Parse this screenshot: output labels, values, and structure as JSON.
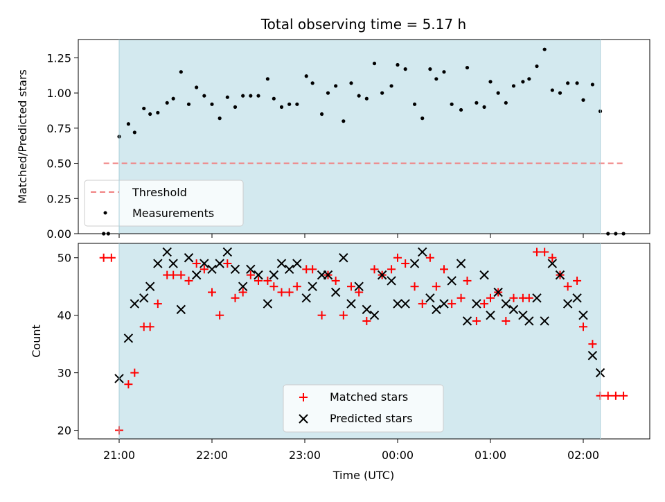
{
  "chart_data": {
    "title": "Total observing time = 5.17 h",
    "xlabel": "Time (UTC)",
    "x_ticks": [
      "21:00",
      "22:00",
      "23:00",
      "00:00",
      "01:00",
      "02:00"
    ],
    "observing_window": {
      "start": "21:00",
      "end": "02:11",
      "color": "#d3e9ef"
    },
    "panels": [
      {
        "type": "scatter",
        "ylabel": "Matched/Predicted stars",
        "ylim": [
          0,
          1.38
        ],
        "y_ticks": [
          "0.00",
          "0.25",
          "0.50",
          "0.75",
          "1.00",
          "1.25"
        ],
        "legend_placement": "lower-left",
        "threshold": {
          "name": "Threshold",
          "value": 0.5,
          "x_start": "20:50",
          "x_end": "02:26",
          "color": "#f08080"
        },
        "series": [
          {
            "name": "Measurements",
            "color": "#000000",
            "points": [
              [
                "20:50",
                0.0
              ],
              [
                "20:53",
                0.0
              ],
              [
                "21:00",
                0.69
              ],
              [
                "21:06",
                0.78
              ],
              [
                "21:10",
                0.72
              ],
              [
                "21:16",
                0.89
              ],
              [
                "21:20",
                0.85
              ],
              [
                "21:25",
                0.86
              ],
              [
                "21:31",
                0.93
              ],
              [
                "21:35",
                0.96
              ],
              [
                "21:40",
                1.15
              ],
              [
                "21:45",
                0.92
              ],
              [
                "21:50",
                1.04
              ],
              [
                "21:55",
                0.98
              ],
              [
                "22:00",
                0.92
              ],
              [
                "22:05",
                0.82
              ],
              [
                "22:10",
                0.97
              ],
              [
                "22:15",
                0.9
              ],
              [
                "22:20",
                0.98
              ],
              [
                "22:25",
                0.98
              ],
              [
                "22:30",
                0.98
              ],
              [
                "22:36",
                1.1
              ],
              [
                "22:40",
                0.96
              ],
              [
                "22:45",
                0.9
              ],
              [
                "22:50",
                0.92
              ],
              [
                "22:55",
                0.92
              ],
              [
                "23:01",
                1.12
              ],
              [
                "23:05",
                1.07
              ],
              [
                "23:11",
                0.85
              ],
              [
                "23:15",
                1.0
              ],
              [
                "23:20",
                1.05
              ],
              [
                "23:25",
                0.8
              ],
              [
                "23:30",
                1.07
              ],
              [
                "23:35",
                0.98
              ],
              [
                "23:40",
                0.96
              ],
              [
                "23:45",
                1.21
              ],
              [
                "23:50",
                1.0
              ],
              [
                "23:56",
                1.05
              ],
              [
                "00:00",
                1.2
              ],
              [
                "00:05",
                1.17
              ],
              [
                "00:11",
                0.92
              ],
              [
                "00:16",
                0.82
              ],
              [
                "00:21",
                1.17
              ],
              [
                "00:25",
                1.1
              ],
              [
                "00:30",
                1.15
              ],
              [
                "00:35",
                0.92
              ],
              [
                "00:41",
                0.88
              ],
              [
                "00:45",
                1.18
              ],
              [
                "00:51",
                0.93
              ],
              [
                "00:56",
                0.9
              ],
              [
                "01:00",
                1.08
              ],
              [
                "01:05",
                1.0
              ],
              [
                "01:10",
                0.93
              ],
              [
                "01:15",
                1.05
              ],
              [
                "01:21",
                1.08
              ],
              [
                "01:25",
                1.1
              ],
              [
                "01:30",
                1.19
              ],
              [
                "01:35",
                1.31
              ],
              [
                "01:40",
                1.02
              ],
              [
                "01:45",
                1.0
              ],
              [
                "01:50",
                1.07
              ],
              [
                "01:56",
                1.07
              ],
              [
                "02:00",
                0.95
              ],
              [
                "02:06",
                1.06
              ],
              [
                "02:11",
                0.87
              ],
              [
                "02:16",
                0.0
              ],
              [
                "02:21",
                0.0
              ],
              [
                "02:26",
                0.0
              ]
            ]
          }
        ]
      },
      {
        "type": "scatter",
        "ylabel": "Count",
        "ylim": [
          18.5,
          52.5
        ],
        "y_ticks": [
          "20",
          "30",
          "40",
          "50"
        ],
        "legend_placement": "lower-center",
        "series": [
          {
            "name": "Matched stars",
            "color": "#ff0000",
            "marker": "+",
            "points": [
              [
                "20:50",
                50
              ],
              [
                "20:55",
                50
              ],
              [
                "21:00",
                20
              ],
              [
                "21:06",
                28
              ],
              [
                "21:10",
                30
              ],
              [
                "21:16",
                38
              ],
              [
                "21:20",
                38
              ],
              [
                "21:25",
                42
              ],
              [
                "21:31",
                47
              ],
              [
                "21:35",
                47
              ],
              [
                "21:40",
                47
              ],
              [
                "21:45",
                46
              ],
              [
                "21:50",
                49
              ],
              [
                "21:55",
                48
              ],
              [
                "22:00",
                44
              ],
              [
                "22:05",
                40
              ],
              [
                "22:10",
                49
              ],
              [
                "22:15",
                43
              ],
              [
                "22:20",
                44
              ],
              [
                "22:25",
                47
              ],
              [
                "22:30",
                46
              ],
              [
                "22:36",
                46
              ],
              [
                "22:40",
                45
              ],
              [
                "22:45",
                44
              ],
              [
                "22:50",
                44
              ],
              [
                "22:55",
                45
              ],
              [
                "23:01",
                48
              ],
              [
                "23:05",
                48
              ],
              [
                "23:11",
                40
              ],
              [
                "23:15",
                47
              ],
              [
                "23:20",
                46
              ],
              [
                "23:25",
                40
              ],
              [
                "23:30",
                45
              ],
              [
                "23:35",
                44
              ],
              [
                "23:40",
                39
              ],
              [
                "23:45",
                48
              ],
              [
                "23:50",
                47
              ],
              [
                "23:56",
                48
              ],
              [
                "00:00",
                50
              ],
              [
                "00:05",
                49
              ],
              [
                "00:11",
                45
              ],
              [
                "00:16",
                42
              ],
              [
                "00:21",
                50
              ],
              [
                "00:25",
                45
              ],
              [
                "00:30",
                48
              ],
              [
                "00:35",
                42
              ],
              [
                "00:41",
                43
              ],
              [
                "00:45",
                46
              ],
              [
                "00:51",
                39
              ],
              [
                "00:56",
                42
              ],
              [
                "01:00",
                43
              ],
              [
                "01:05",
                44
              ],
              [
                "01:10",
                39
              ],
              [
                "01:15",
                43
              ],
              [
                "01:21",
                43
              ],
              [
                "01:25",
                43
              ],
              [
                "01:30",
                51
              ],
              [
                "01:35",
                51
              ],
              [
                "01:40",
                50
              ],
              [
                "01:45",
                47
              ],
              [
                "01:50",
                45
              ],
              [
                "01:56",
                46
              ],
              [
                "02:00",
                38
              ],
              [
                "02:06",
                35
              ],
              [
                "02:11",
                26
              ],
              [
                "02:16",
                26
              ],
              [
                "02:21",
                26
              ],
              [
                "02:26",
                26
              ]
            ]
          },
          {
            "name": "Predicted stars",
            "color": "#000000",
            "marker": "x",
            "points": [
              [
                "21:00",
                29
              ],
              [
                "21:06",
                36
              ],
              [
                "21:10",
                42
              ],
              [
                "21:16",
                43
              ],
              [
                "21:20",
                45
              ],
              [
                "21:25",
                49
              ],
              [
                "21:31",
                51
              ],
              [
                "21:35",
                49
              ],
              [
                "21:40",
                41
              ],
              [
                "21:45",
                50
              ],
              [
                "21:50",
                47
              ],
              [
                "21:55",
                49
              ],
              [
                "22:00",
                48
              ],
              [
                "22:05",
                49
              ],
              [
                "22:10",
                51
              ],
              [
                "22:15",
                48
              ],
              [
                "22:20",
                45
              ],
              [
                "22:25",
                48
              ],
              [
                "22:30",
                47
              ],
              [
                "22:36",
                42
              ],
              [
                "22:40",
                47
              ],
              [
                "22:45",
                49
              ],
              [
                "22:50",
                48
              ],
              [
                "22:55",
                49
              ],
              [
                "23:01",
                43
              ],
              [
                "23:05",
                45
              ],
              [
                "23:11",
                47
              ],
              [
                "23:15",
                47
              ],
              [
                "23:20",
                44
              ],
              [
                "23:25",
                50
              ],
              [
                "23:30",
                42
              ],
              [
                "23:35",
                45
              ],
              [
                "23:40",
                41
              ],
              [
                "23:45",
                40
              ],
              [
                "23:50",
                47
              ],
              [
                "23:56",
                46
              ],
              [
                "00:00",
                42
              ],
              [
                "00:05",
                42
              ],
              [
                "00:11",
                49
              ],
              [
                "00:16",
                51
              ],
              [
                "00:21",
                43
              ],
              [
                "00:25",
                41
              ],
              [
                "00:30",
                42
              ],
              [
                "00:35",
                46
              ],
              [
                "00:41",
                49
              ],
              [
                "00:45",
                39
              ],
              [
                "00:51",
                42
              ],
              [
                "00:56",
                47
              ],
              [
                "01:00",
                40
              ],
              [
                "01:05",
                44
              ],
              [
                "01:10",
                42
              ],
              [
                "01:15",
                41
              ],
              [
                "01:21",
                40
              ],
              [
                "01:25",
                39
              ],
              [
                "01:30",
                43
              ],
              [
                "01:35",
                39
              ],
              [
                "01:40",
                49
              ],
              [
                "01:45",
                47
              ],
              [
                "01:50",
                42
              ],
              [
                "01:56",
                43
              ],
              [
                "02:00",
                40
              ],
              [
                "02:06",
                33
              ],
              [
                "02:11",
                30
              ]
            ]
          }
        ]
      }
    ]
  }
}
